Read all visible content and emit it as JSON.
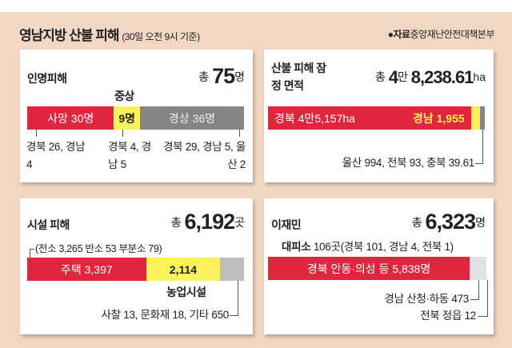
{
  "header": {
    "title": "영남지방 산불 피해",
    "subtitle": "(30일 오전 9시 기준)",
    "source_label": "●자료",
    "source": "중앙재난안전대책본부"
  },
  "colors": {
    "background": "#f2d8c4",
    "red": "#e0263f",
    "yellow": "#fbf25c",
    "gray": "#858585",
    "light_gray": "#bdbdbd"
  },
  "chart_data": [
    {
      "type": "bar",
      "stacked": true,
      "title": "인명피해",
      "total_prefix": "총",
      "total": "75",
      "unit": "명",
      "segments": [
        {
          "label": "사망 30명",
          "value": 30,
          "note": "경북 26, 경남 4"
        },
        {
          "top_label": "중상",
          "label": "9명",
          "value": 9,
          "note": "경북 4, 경남 5"
        },
        {
          "label": "경상 36명",
          "value": 36,
          "note": "경북 29, 경남 5, 울산 2"
        }
      ]
    },
    {
      "type": "bar",
      "stacked": true,
      "title": "산불 피해 잠정 면적",
      "total_prefix": "총",
      "total_man": "4",
      "man": "만",
      "total": "8,238.61",
      "unit": "ha",
      "segments": [
        {
          "label": "경북 4만5,157ha",
          "value": 45157
        },
        {
          "label": "경남 1,955",
          "value": 1955
        },
        {
          "label": "",
          "value": 1126.61,
          "note": "울산 994, 전북 93, 충북 39.61"
        }
      ]
    },
    {
      "type": "bar",
      "stacked": true,
      "title": "시설 피해",
      "total_prefix": "총",
      "total": "6,192",
      "unit": "곳",
      "top_note": "(전소 3,265 반소 53 부분소 79)",
      "segments": [
        {
          "label": "주택 3,397",
          "value": 3397
        },
        {
          "label": "2,114",
          "value": 2114,
          "bottom_label": "농업시설"
        },
        {
          "label": "",
          "value": 681,
          "note": "사찰 13, 문화재 18, 기타 650"
        }
      ]
    },
    {
      "type": "bar",
      "stacked": true,
      "title": "이재민",
      "total_prefix": "총",
      "total": "6,323",
      "unit": "명",
      "shelter_label": "대피소",
      "shelter": "106곳(경북 101, 경남 4, 전북 1)",
      "segments": [
        {
          "label": "경북 안동·의성 등 5,838명",
          "value": 5838
        },
        {
          "label": "",
          "value": 473,
          "note": "경남 산청·하동 473"
        },
        {
          "label": "",
          "value": 12,
          "note": "전북 정읍 12"
        }
      ]
    }
  ]
}
